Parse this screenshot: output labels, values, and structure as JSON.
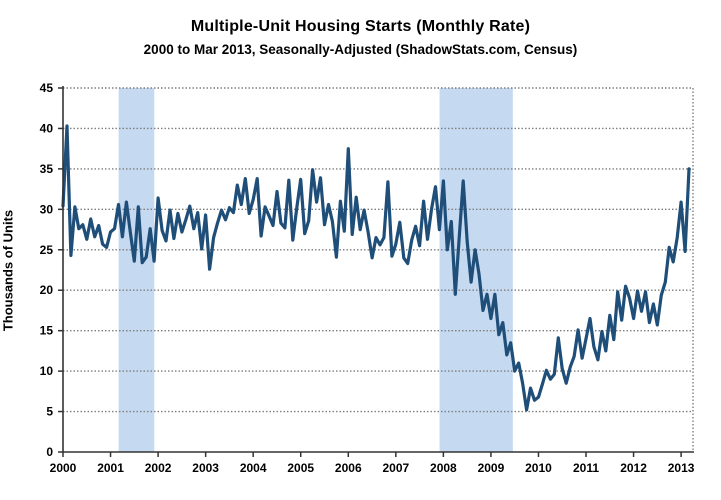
{
  "header": {
    "title": "Multiple-Unit Housing Starts (Monthly Rate)",
    "subtitle": "2000 to Mar 2013, Seasonally-Adjusted (ShadowStats.com, Census)"
  },
  "chart_data": {
    "type": "line",
    "title": "Multiple-Unit Housing Starts (Monthly Rate)",
    "subtitle": "2000 to Mar 2013, Seasonally-Adjusted (ShadowStats.com, Census)",
    "xlabel": "",
    "ylabel": "Thousands of Units",
    "xlim": [
      2000,
      2013.25
    ],
    "ylim": [
      0,
      45
    ],
    "y_ticks": [
      0,
      5,
      10,
      15,
      20,
      25,
      30,
      35,
      40,
      45
    ],
    "x_ticks": [
      "2000",
      "2001",
      "2002",
      "2003",
      "2004",
      "2005",
      "2006",
      "2007",
      "2008",
      "2009",
      "2010",
      "2011",
      "2012",
      "2013"
    ],
    "grid": "horizontal-dotted",
    "legend": "none",
    "shaded_regions": [
      {
        "name": "recession-2001",
        "x0": 2001.17,
        "x1": 2001.92
      },
      {
        "name": "recession-2007-2009",
        "x0": 2007.92,
        "x1": 2009.46
      }
    ],
    "series": [
      {
        "name": "Multiple-unit housing starts, monthly rate (thousands of units)",
        "frequency": "monthly",
        "start": "2000-01",
        "end": "2013-03",
        "values": [
          30.4,
          40.3,
          24.3,
          30.3,
          27.6,
          28.1,
          26.3,
          28.8,
          26.6,
          28.0,
          25.7,
          25.3,
          27.2,
          27.6,
          30.6,
          26.6,
          30.9,
          27.1,
          23.6,
          30.3,
          23.4,
          24.1,
          27.6,
          23.6,
          31.4,
          27.4,
          26.1,
          29.9,
          26.4,
          29.5,
          27.2,
          28.7,
          30.4,
          27.6,
          29.6,
          25.1,
          29.3,
          22.6,
          26.5,
          28.3,
          29.9,
          28.7,
          30.2,
          29.6,
          33.0,
          30.6,
          33.8,
          29.5,
          31.2,
          33.8,
          26.7,
          30.3,
          29.2,
          28.0,
          32.2,
          28.3,
          27.7,
          33.6,
          26.2,
          30.2,
          33.7,
          27.0,
          28.6,
          34.9,
          30.9,
          33.9,
          28.1,
          30.6,
          28.5,
          24.1,
          31.0,
          27.3,
          37.5,
          26.9,
          31.5,
          27.5,
          29.9,
          27.2,
          24.0,
          26.5,
          25.6,
          26.5,
          33.4,
          24.2,
          25.7,
          28.4,
          24.0,
          23.3,
          26.2,
          27.9,
          25.5,
          31.0,
          26.3,
          30.0,
          32.8,
          27.5,
          33.5,
          25.0,
          28.5,
          19.5,
          26.5,
          33.5,
          26.0,
          21.0,
          25.0,
          22.0,
          17.5,
          19.5,
          16.5,
          19.5,
          14.5,
          16.0,
          12.0,
          13.5,
          10.0,
          11.0,
          8.5,
          5.2,
          7.9,
          6.4,
          6.8,
          8.4,
          10.1,
          9.0,
          9.6,
          14.1,
          10.3,
          8.5,
          10.5,
          11.8,
          15.1,
          11.6,
          14.0,
          16.5,
          13.0,
          11.4,
          14.9,
          12.5,
          16.9,
          13.9,
          19.8,
          16.3,
          20.5,
          19.0,
          16.5,
          19.9,
          17.4,
          19.8,
          16.0,
          18.3,
          15.7,
          19.4,
          21.0,
          25.3,
          23.5,
          26.5,
          30.9,
          24.8,
          35.0
        ]
      }
    ],
    "colors": {
      "line": "#1F4E79",
      "band": "#C5D9F1",
      "grid": "#7F7F7F",
      "border": "#8C8C8C",
      "axis": "#333333",
      "text": "#000000",
      "background": "#FFFFFF"
    }
  }
}
